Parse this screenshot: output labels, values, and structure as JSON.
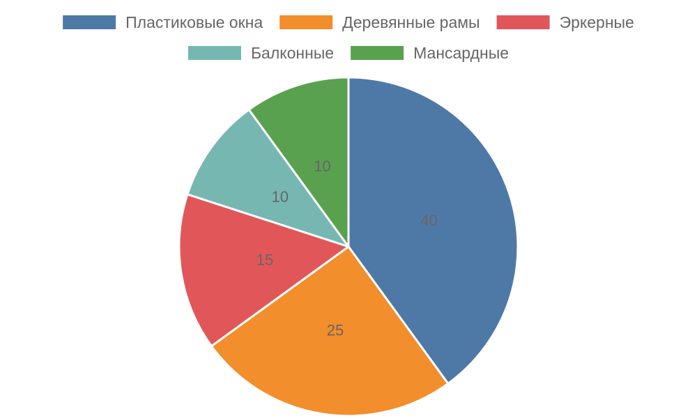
{
  "chart_data": {
    "type": "pie",
    "categories": [
      "Пластиковые окна",
      "Деревянные рамы",
      "Эркерные",
      "Балконные",
      "Мансардные"
    ],
    "values": [
      40,
      25,
      15,
      10,
      10
    ],
    "colors": [
      "#4e79a7",
      "#f28e2b",
      "#e15759",
      "#76b7b2",
      "#59a14f"
    ],
    "legend_position": "top",
    "start_angle": "12 o'clock",
    "direction": "clockwise",
    "show_value_labels": true
  }
}
